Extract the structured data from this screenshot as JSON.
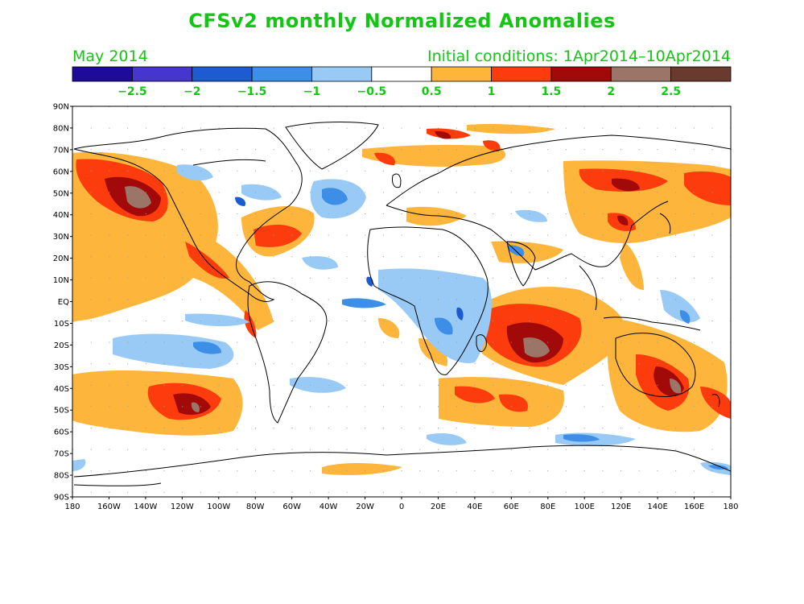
{
  "title": "CFSv2 monthly Normalized Anomalies",
  "subtitle_left": "May 2014",
  "subtitle_right": "Initial conditions: 1Apr2014–10Apr2014",
  "colorbar": {
    "colors": [
      "#1f0b9a",
      "#4636cd",
      "#1c5cd0",
      "#3c8ee6",
      "#98caf5",
      "#ffffff",
      "#fdb53b",
      "#fc3c0c",
      "#a20a0a",
      "#9b7568",
      "#6b3a2e"
    ],
    "labels": [
      "−2.5",
      "−2",
      "−1.5",
      "−1",
      "−0.5",
      "0.5",
      "1",
      "1.5",
      "2",
      "2.5"
    ]
  },
  "map": {
    "lat_labels": [
      "90N",
      "80N",
      "70N",
      "60N",
      "50N",
      "40N",
      "30N",
      "20N",
      "10N",
      "EQ",
      "10S",
      "20S",
      "30S",
      "40S",
      "50S",
      "60S",
      "70S",
      "80S",
      "90S"
    ],
    "lon_labels": [
      "180",
      "160W",
      "140W",
      "120W",
      "100W",
      "80W",
      "60W",
      "40W",
      "20W",
      "0",
      "20E",
      "40E",
      "60E",
      "80E",
      "100E",
      "120E",
      "140E",
      "160E",
      "180"
    ]
  }
}
